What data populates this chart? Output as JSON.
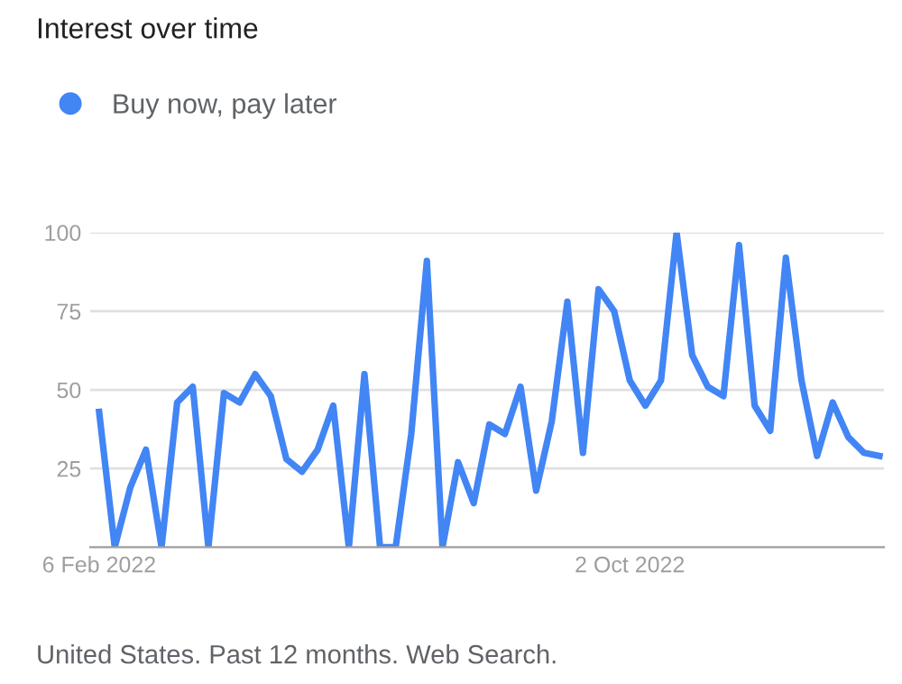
{
  "chart_data": {
    "type": "line",
    "title": "Interest over time",
    "x": [
      "2022-02-06",
      "2022-02-13",
      "2022-02-20",
      "2022-02-27",
      "2022-03-06",
      "2022-03-13",
      "2022-03-20",
      "2022-03-27",
      "2022-04-03",
      "2022-04-10",
      "2022-04-17",
      "2022-04-24",
      "2022-05-01",
      "2022-05-08",
      "2022-05-15",
      "2022-05-22",
      "2022-05-29",
      "2022-06-05",
      "2022-06-12",
      "2022-06-19",
      "2022-06-26",
      "2022-07-03",
      "2022-07-10",
      "2022-07-17",
      "2022-07-24",
      "2022-07-31",
      "2022-08-07",
      "2022-08-14",
      "2022-08-21",
      "2022-08-28",
      "2022-09-04",
      "2022-09-11",
      "2022-09-18",
      "2022-09-25",
      "2022-10-02",
      "2022-10-09",
      "2022-10-16",
      "2022-10-23",
      "2022-10-30",
      "2022-11-06",
      "2022-11-13",
      "2022-11-20",
      "2022-11-27",
      "2022-12-04",
      "2022-12-11",
      "2022-12-18",
      "2022-12-25",
      "2023-01-01",
      "2023-01-08",
      "2023-01-15",
      "2023-01-22"
    ],
    "series": [
      {
        "name": "Buy now, pay later",
        "color": "#4285f4",
        "values": [
          43,
          0,
          19,
          31,
          0,
          46,
          51,
          0,
          49,
          46,
          55,
          48,
          28,
          24,
          31,
          45,
          0,
          55,
          0,
          0,
          36,
          91,
          0,
          27,
          14,
          39,
          36,
          51,
          18,
          40,
          78,
          30,
          82,
          75,
          53,
          45,
          53,
          100,
          61,
          51,
          48,
          96,
          45,
          37,
          92,
          53,
          29,
          46,
          35,
          30,
          29
        ]
      }
    ],
    "xlim": [
      "2022-02-02",
      "2023-01-24"
    ],
    "xticks": [
      {
        "value": "2022-02-06",
        "label": "6 Feb 2022"
      },
      {
        "value": "2022-10-02",
        "label": "2 Oct 2022"
      }
    ],
    "ylim": [
      0,
      100
    ],
    "yticks": [
      25,
      50,
      75,
      100
    ],
    "grid": "y",
    "legend": "top left",
    "marker": "none",
    "line_style": "solid",
    "annotations": [
      "United States. Past 12 months. Web Search."
    ]
  }
}
